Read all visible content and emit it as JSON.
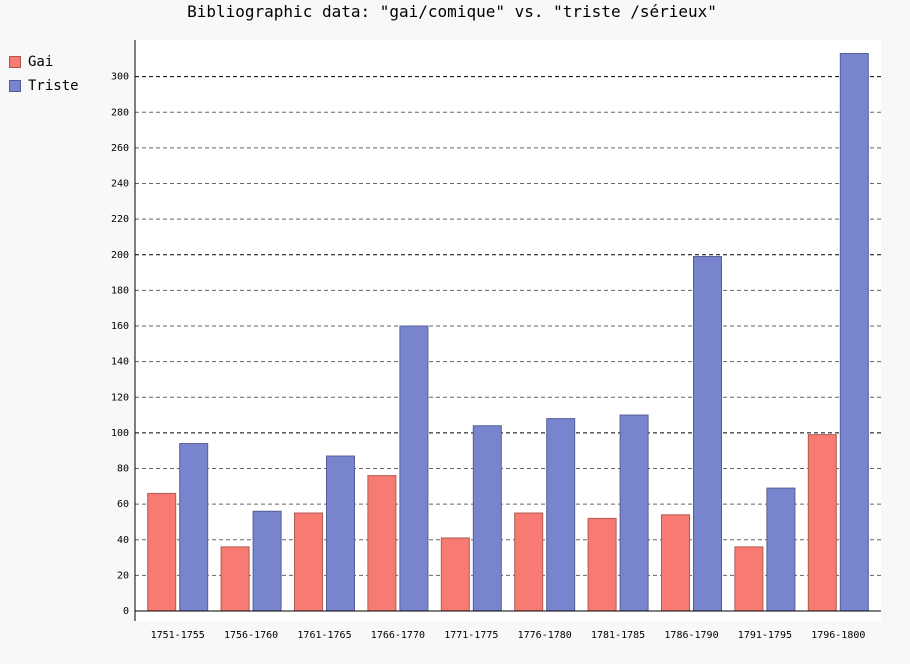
{
  "chart_data": {
    "type": "bar",
    "title": "Bibliographic data: \"gai/comique\" vs. \"triste /sérieux\"",
    "xlabel": "",
    "ylabel": "",
    "categories": [
      "1751-1755",
      "1756-1760",
      "1761-1765",
      "1766-1770",
      "1771-1775",
      "1776-1780",
      "1781-1785",
      "1786-1790",
      "1791-1795",
      "1796-1800"
    ],
    "series": [
      {
        "name": "Gai",
        "color": "#f77b72",
        "values": [
          66,
          36,
          55,
          76,
          41,
          55,
          52,
          54,
          36,
          99
        ]
      },
      {
        "name": "Triste",
        "color": "#7884cd",
        "values": [
          94,
          56,
          87,
          160,
          104,
          108,
          110,
          199,
          69,
          313
        ]
      }
    ],
    "ylim": [
      0,
      320
    ],
    "yticks": [
      0,
      20,
      40,
      60,
      80,
      100,
      120,
      140,
      160,
      180,
      200,
      220,
      240,
      260,
      280,
      300
    ],
    "grid": true,
    "legend_position": "top-left"
  }
}
